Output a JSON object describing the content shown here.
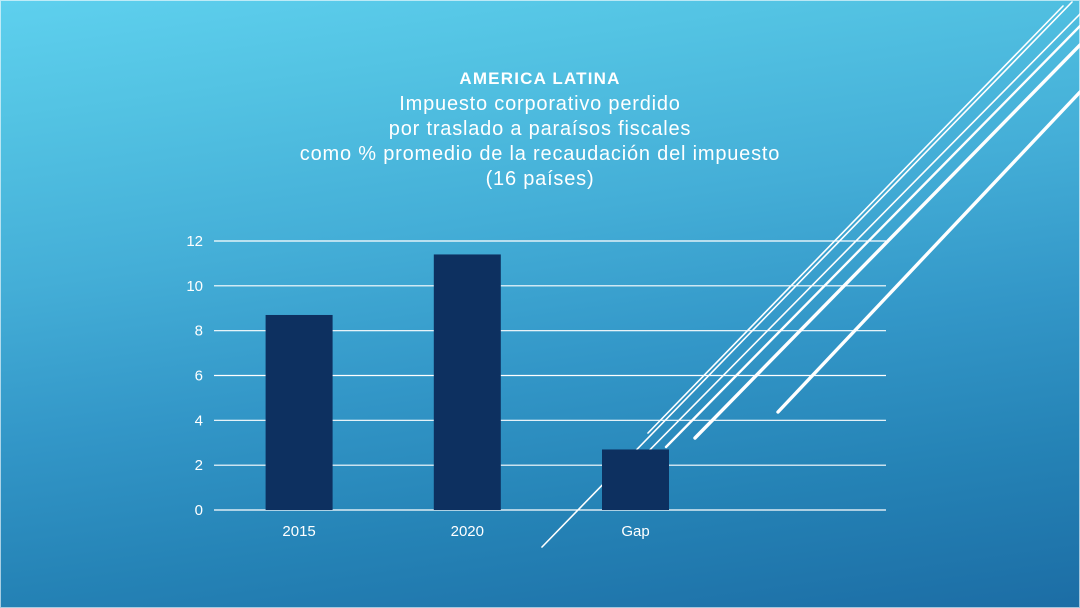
{
  "slide": {
    "title": "AMERICA LATINA",
    "subtitle_lines": [
      "Impuesto corporativo perdido",
      "por traslado a paraísos fiscales",
      "como % promedio de la recaudación del impuesto",
      "(16 países)"
    ]
  },
  "chart_data": {
    "type": "bar",
    "categories": [
      "2015",
      "2020",
      "Gap"
    ],
    "values": [
      8.7,
      11.4,
      2.7
    ],
    "title": "AMERICA LATINA — Impuesto corporativo perdido por traslado a paraísos fiscales como % promedio de la recaudación del impuesto (16 países)",
    "xlabel": "",
    "ylabel": "",
    "ylim": [
      0,
      12
    ],
    "ytick_step": 2,
    "grid": true,
    "legend": "none",
    "bar_color": "#0d3060",
    "label_color": "#ffffff"
  },
  "colors": {
    "background_top": "#5ed0ee",
    "background_bottom": "#1c6da5",
    "bar": "#0d3060",
    "gridline": "#ffffff",
    "text": "#ffffff",
    "bottom_accent": "#1a3e6d"
  }
}
